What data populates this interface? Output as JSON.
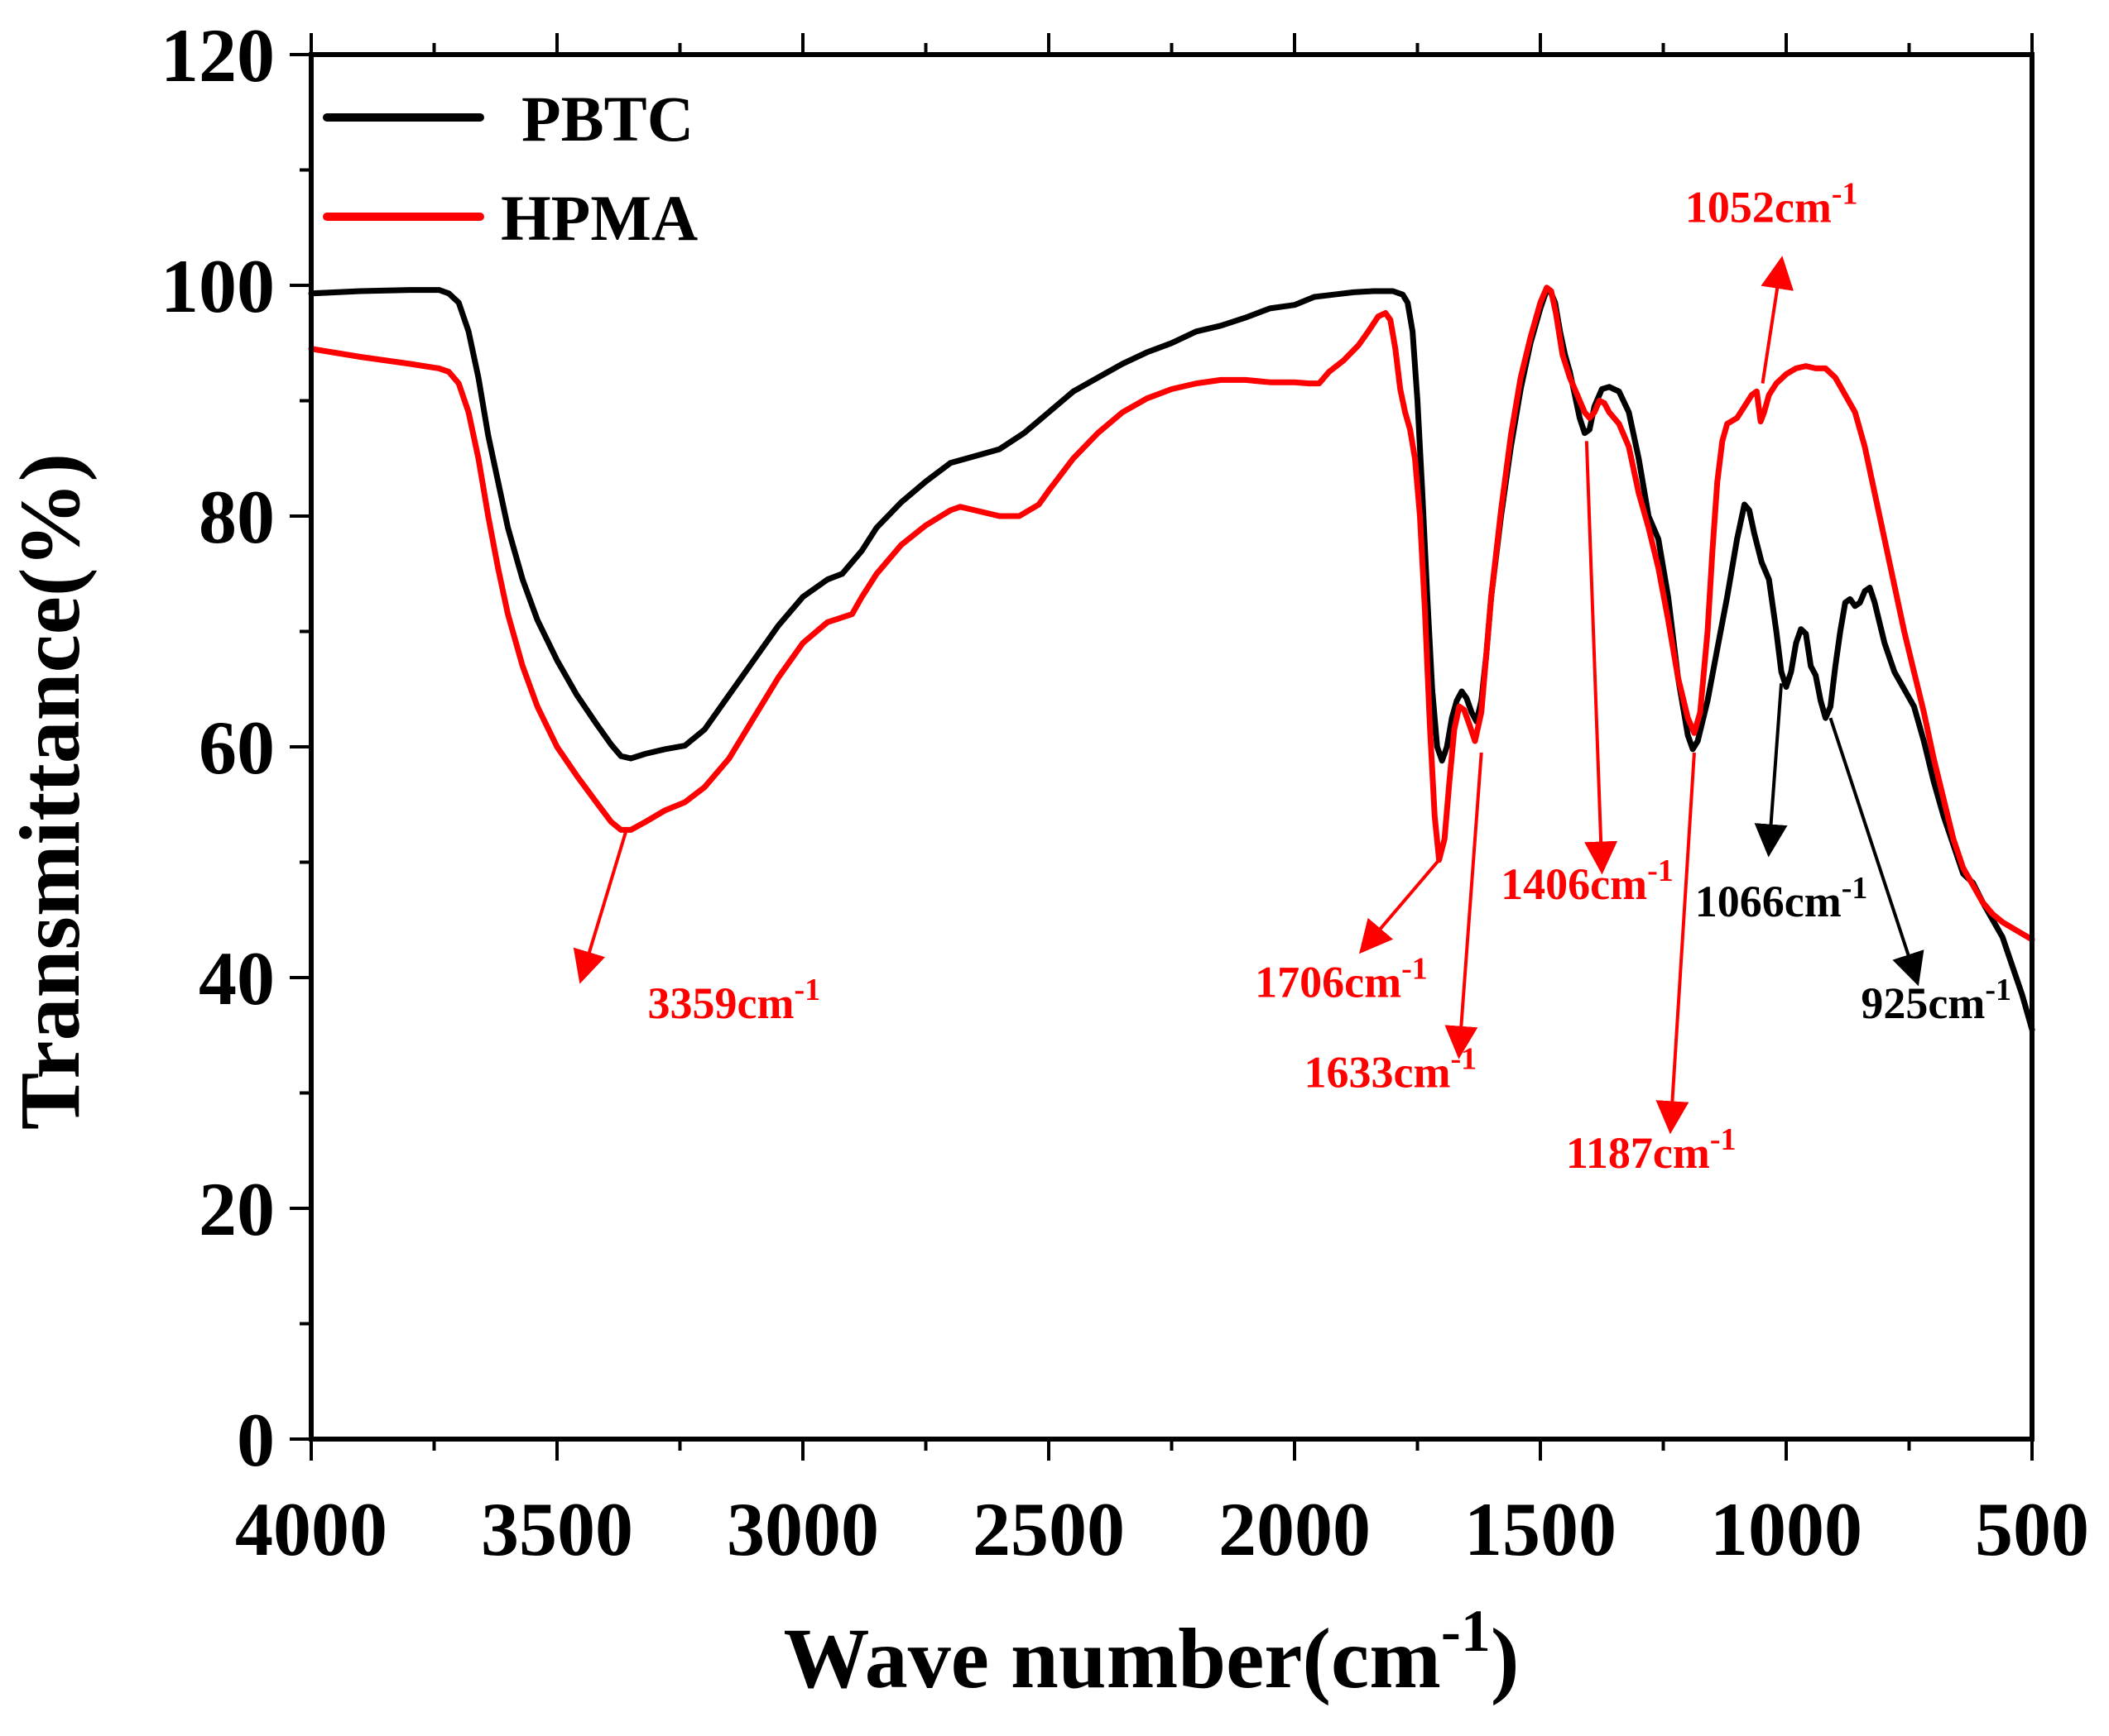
{
  "chart_data": {
    "type": "line",
    "xlabel": "Wave number(cm",
    "xlabel_sup": "-1",
    "xlabel_close": ")",
    "ylabel": "Transmittance(%)",
    "xlim": [
      4000,
      500
    ],
    "ylim": [
      0,
      120
    ],
    "x_ticks": [
      4000,
      3500,
      3000,
      2500,
      2000,
      1500,
      1000,
      500
    ],
    "y_ticks": [
      0,
      20,
      40,
      60,
      80,
      100,
      120
    ],
    "grid": false,
    "legend_position": "top-left",
    "series": [
      {
        "name": "PBTC",
        "color": "#000000",
        "points": [
          [
            4000,
            99.3
          ],
          [
            3900,
            99.5
          ],
          [
            3800,
            99.6
          ],
          [
            3740,
            99.6
          ],
          [
            3720,
            99.3
          ],
          [
            3700,
            98.5
          ],
          [
            3680,
            96
          ],
          [
            3660,
            92
          ],
          [
            3640,
            87
          ],
          [
            3620,
            83
          ],
          [
            3600,
            79
          ],
          [
            3570,
            74.5
          ],
          [
            3540,
            71
          ],
          [
            3500,
            67.5
          ],
          [
            3460,
            64.5
          ],
          [
            3420,
            62
          ],
          [
            3390,
            60.2
          ],
          [
            3370,
            59.2
          ],
          [
            3350,
            59.0
          ],
          [
            3320,
            59.4
          ],
          [
            3280,
            59.8
          ],
          [
            3240,
            60.1
          ],
          [
            3200,
            61.5
          ],
          [
            3150,
            64.5
          ],
          [
            3100,
            67.5
          ],
          [
            3050,
            70.5
          ],
          [
            3000,
            73
          ],
          [
            2950,
            74.5
          ],
          [
            2920,
            75
          ],
          [
            2880,
            77
          ],
          [
            2850,
            79
          ],
          [
            2800,
            81.2
          ],
          [
            2750,
            83
          ],
          [
            2700,
            84.6
          ],
          [
            2650,
            85.2
          ],
          [
            2600,
            85.8
          ],
          [
            2550,
            87.2
          ],
          [
            2500,
            89
          ],
          [
            2450,
            90.8
          ],
          [
            2400,
            92
          ],
          [
            2350,
            93.2
          ],
          [
            2300,
            94.2
          ],
          [
            2250,
            95
          ],
          [
            2200,
            96
          ],
          [
            2150,
            96.5
          ],
          [
            2100,
            97.2
          ],
          [
            2050,
            98
          ],
          [
            2000,
            98.3
          ],
          [
            1960,
            99
          ],
          [
            1920,
            99.2
          ],
          [
            1880,
            99.4
          ],
          [
            1840,
            99.5
          ],
          [
            1800,
            99.5
          ],
          [
            1780,
            99.2
          ],
          [
            1770,
            98.5
          ],
          [
            1760,
            96
          ],
          [
            1750,
            90
          ],
          [
            1740,
            82
          ],
          [
            1730,
            73
          ],
          [
            1720,
            65
          ],
          [
            1710,
            60
          ],
          [
            1700,
            58.8
          ],
          [
            1690,
            60
          ],
          [
            1680,
            62.5
          ],
          [
            1670,
            64
          ],
          [
            1660,
            64.8
          ],
          [
            1650,
            64.2
          ],
          [
            1640,
            63
          ],
          [
            1630,
            62.2
          ],
          [
            1620,
            64
          ],
          [
            1610,
            68
          ],
          [
            1600,
            73
          ],
          [
            1580,
            80
          ],
          [
            1560,
            86
          ],
          [
            1540,
            91
          ],
          [
            1520,
            95
          ],
          [
            1500,
            98
          ],
          [
            1487,
            99.6
          ],
          [
            1480,
            99.5
          ],
          [
            1470,
            98.5
          ],
          [
            1460,
            96
          ],
          [
            1450,
            94
          ],
          [
            1440,
            92.5
          ],
          [
            1430,
            90.5
          ],
          [
            1420,
            88.5
          ],
          [
            1410,
            87.2
          ],
          [
            1400,
            87.5
          ],
          [
            1390,
            89.5
          ],
          [
            1375,
            91
          ],
          [
            1360,
            91.2
          ],
          [
            1340,
            90.8
          ],
          [
            1320,
            89
          ],
          [
            1300,
            85
          ],
          [
            1280,
            80
          ],
          [
            1260,
            78
          ],
          [
            1240,
            73
          ],
          [
            1220,
            66
          ],
          [
            1200,
            61
          ],
          [
            1190,
            59.8
          ],
          [
            1180,
            60.5
          ],
          [
            1160,
            64
          ],
          [
            1140,
            68.5
          ],
          [
            1120,
            73
          ],
          [
            1100,
            78
          ],
          [
            1085,
            81
          ],
          [
            1075,
            80.5
          ],
          [
            1065,
            78.5
          ],
          [
            1050,
            76
          ],
          [
            1035,
            74.5
          ],
          [
            1020,
            70
          ],
          [
            1010,
            66.5
          ],
          [
            1000,
            65.2
          ],
          [
            990,
            66.5
          ],
          [
            980,
            69
          ],
          [
            970,
            70.2
          ],
          [
            960,
            69.8
          ],
          [
            950,
            67
          ],
          [
            940,
            66.2
          ],
          [
            930,
            64
          ],
          [
            920,
            62.5
          ],
          [
            910,
            63.5
          ],
          [
            900,
            67
          ],
          [
            890,
            70
          ],
          [
            880,
            72.5
          ],
          [
            870,
            72.8
          ],
          [
            860,
            72.2
          ],
          [
            850,
            72.5
          ],
          [
            840,
            73.5
          ],
          [
            830,
            73.8
          ],
          [
            820,
            72.5
          ],
          [
            800,
            69
          ],
          [
            780,
            66.5
          ],
          [
            760,
            65
          ],
          [
            740,
            63.5
          ],
          [
            720,
            60.5
          ],
          [
            700,
            57
          ],
          [
            680,
            54
          ],
          [
            660,
            51.5
          ],
          [
            640,
            49
          ],
          [
            620,
            48.2
          ],
          [
            600,
            46.5
          ],
          [
            580,
            45
          ],
          [
            560,
            43.5
          ],
          [
            540,
            41
          ],
          [
            520,
            38.5
          ],
          [
            500,
            35.5
          ]
        ]
      },
      {
        "name": "HPMA",
        "color": "#ff0000",
        "points": [
          [
            4000,
            94.5
          ],
          [
            3900,
            93.8
          ],
          [
            3800,
            93.2
          ],
          [
            3740,
            92.8
          ],
          [
            3720,
            92.5
          ],
          [
            3700,
            91.5
          ],
          [
            3680,
            89
          ],
          [
            3660,
            85
          ],
          [
            3640,
            80
          ],
          [
            3620,
            75.5
          ],
          [
            3600,
            71.5
          ],
          [
            3570,
            67
          ],
          [
            3540,
            63.5
          ],
          [
            3500,
            60
          ],
          [
            3460,
            57.5
          ],
          [
            3420,
            55.2
          ],
          [
            3390,
            53.5
          ],
          [
            3370,
            52.8
          ],
          [
            3350,
            52.8
          ],
          [
            3320,
            53.5
          ],
          [
            3280,
            54.5
          ],
          [
            3240,
            55.2
          ],
          [
            3200,
            56.5
          ],
          [
            3150,
            59
          ],
          [
            3100,
            62.5
          ],
          [
            3050,
            66
          ],
          [
            3000,
            69
          ],
          [
            2950,
            70.8
          ],
          [
            2900,
            71.5
          ],
          [
            2880,
            73
          ],
          [
            2850,
            75
          ],
          [
            2800,
            77.5
          ],
          [
            2750,
            79.2
          ],
          [
            2700,
            80.5
          ],
          [
            2680,
            80.8
          ],
          [
            2650,
            80.5
          ],
          [
            2600,
            80
          ],
          [
            2560,
            80
          ],
          [
            2520,
            81
          ],
          [
            2500,
            82.2
          ],
          [
            2450,
            85
          ],
          [
            2400,
            87.2
          ],
          [
            2350,
            89
          ],
          [
            2300,
            90.2
          ],
          [
            2250,
            91
          ],
          [
            2200,
            91.5
          ],
          [
            2150,
            91.8
          ],
          [
            2100,
            91.8
          ],
          [
            2050,
            91.6
          ],
          [
            2000,
            91.6
          ],
          [
            1970,
            91.5
          ],
          [
            1950,
            91.5
          ],
          [
            1930,
            92.5
          ],
          [
            1900,
            93.5
          ],
          [
            1870,
            94.8
          ],
          [
            1850,
            96
          ],
          [
            1830,
            97.3
          ],
          [
            1815,
            97.6
          ],
          [
            1805,
            97
          ],
          [
            1795,
            94.5
          ],
          [
            1785,
            91
          ],
          [
            1775,
            89
          ],
          [
            1765,
            87.5
          ],
          [
            1755,
            85
          ],
          [
            1745,
            80
          ],
          [
            1735,
            72
          ],
          [
            1725,
            62
          ],
          [
            1715,
            54
          ],
          [
            1706,
            50.2
          ],
          [
            1695,
            52
          ],
          [
            1685,
            57
          ],
          [
            1675,
            61.5
          ],
          [
            1665,
            63.5
          ],
          [
            1655,
            63.2
          ],
          [
            1645,
            62
          ],
          [
            1633,
            60.5
          ],
          [
            1620,
            63
          ],
          [
            1610,
            68
          ],
          [
            1600,
            73
          ],
          [
            1580,
            80.5
          ],
          [
            1560,
            87
          ],
          [
            1540,
            92
          ],
          [
            1520,
            95.5
          ],
          [
            1500,
            98.5
          ],
          [
            1487,
            99.8
          ],
          [
            1478,
            99.5
          ],
          [
            1468,
            97.5
          ],
          [
            1455,
            94
          ],
          [
            1440,
            92
          ],
          [
            1425,
            90.5
          ],
          [
            1410,
            89
          ],
          [
            1400,
            88.5
          ],
          [
            1390,
            89
          ],
          [
            1380,
            90
          ],
          [
            1370,
            89.8
          ],
          [
            1360,
            89
          ],
          [
            1340,
            88
          ],
          [
            1320,
            86
          ],
          [
            1300,
            82
          ],
          [
            1280,
            79
          ],
          [
            1260,
            75.5
          ],
          [
            1240,
            71
          ],
          [
            1220,
            66
          ],
          [
            1200,
            62.5
          ],
          [
            1187,
            61.2
          ],
          [
            1175,
            63
          ],
          [
            1160,
            70
          ],
          [
            1150,
            77
          ],
          [
            1140,
            83
          ],
          [
            1130,
            86.5
          ],
          [
            1120,
            88
          ],
          [
            1100,
            88.5
          ],
          [
            1085,
            89.5
          ],
          [
            1070,
            90.5
          ],
          [
            1060,
            90.8
          ],
          [
            1052,
            88.2
          ],
          [
            1045,
            89
          ],
          [
            1035,
            90.5
          ],
          [
            1020,
            91.5
          ],
          [
            1000,
            92.3
          ],
          [
            980,
            92.8
          ],
          [
            960,
            93
          ],
          [
            940,
            92.8
          ],
          [
            920,
            92.8
          ],
          [
            900,
            92
          ],
          [
            880,
            90.5
          ],
          [
            860,
            89
          ],
          [
            840,
            86
          ],
          [
            820,
            82
          ],
          [
            800,
            78
          ],
          [
            780,
            74
          ],
          [
            760,
            70
          ],
          [
            740,
            66.5
          ],
          [
            720,
            63
          ],
          [
            700,
            59
          ],
          [
            680,
            55.5
          ],
          [
            660,
            52
          ],
          [
            640,
            49.5
          ],
          [
            620,
            48
          ],
          [
            600,
            46.5
          ],
          [
            580,
            45.5
          ],
          [
            560,
            44.8
          ],
          [
            540,
            44.3
          ],
          [
            520,
            43.8
          ],
          [
            500,
            43.3
          ]
        ]
      }
    ],
    "annotations": [
      {
        "label": "3359cm",
        "sup": "-1",
        "color": "#ff0000",
        "peak_x": 3359,
        "peak_y": 52.8,
        "label_x": 3140,
        "label_y": 36.5,
        "arrow_to_x": 3450,
        "arrow_to_y": 40
      },
      {
        "label": "1706cm",
        "sup": "-1",
        "color": "#ff0000",
        "peak_x": 1706,
        "peak_y": 50.2,
        "label_x": 1905,
        "label_y": 38.3,
        "arrow_to_x": 1860,
        "arrow_to_y": 42.5
      },
      {
        "label": "1633cm",
        "sup": "-1",
        "color": "#ff0000",
        "peak_x": 1620,
        "peak_y": 59.5,
        "label_x": 1805,
        "label_y": 30.5,
        "arrow_to_x": 1665,
        "arrow_to_y": 33.5
      },
      {
        "label": "1406cm",
        "sup": "-1",
        "color": "#ff0000",
        "peak_x": 1406,
        "peak_y": 86.5,
        "label_x": 1405,
        "label_y": 46.8,
        "arrow_to_x": 1375,
        "arrow_to_y": 49.5
      },
      {
        "label": "1187cm",
        "sup": "-1",
        "color": "#ff0000",
        "peak_x": 1187,
        "peak_y": 59.5,
        "label_x": 1275,
        "label_y": 23.5,
        "arrow_to_x": 1235,
        "arrow_to_y": 27
      },
      {
        "label": "1052cm",
        "sup": "-1",
        "color": "#ff0000",
        "peak_x": 1048,
        "peak_y": 91.5,
        "label_x": 1030,
        "label_y": 105.5,
        "arrow_to_x": 1010,
        "arrow_to_y": 102
      },
      {
        "label": "1066cm",
        "sup": "-1",
        "color": "#000000",
        "peak_x": 1010,
        "peak_y": 65.5,
        "label_x": 1010,
        "label_y": 45.3,
        "arrow_to_x": 1035,
        "arrow_to_y": 51
      },
      {
        "label": "925cm",
        "sup": "-1",
        "color": "#000000",
        "peak_x": 910,
        "peak_y": 62.5,
        "label_x": 695,
        "label_y": 36.5,
        "arrow_to_x": 735,
        "arrow_to_y": 39.8
      }
    ]
  }
}
